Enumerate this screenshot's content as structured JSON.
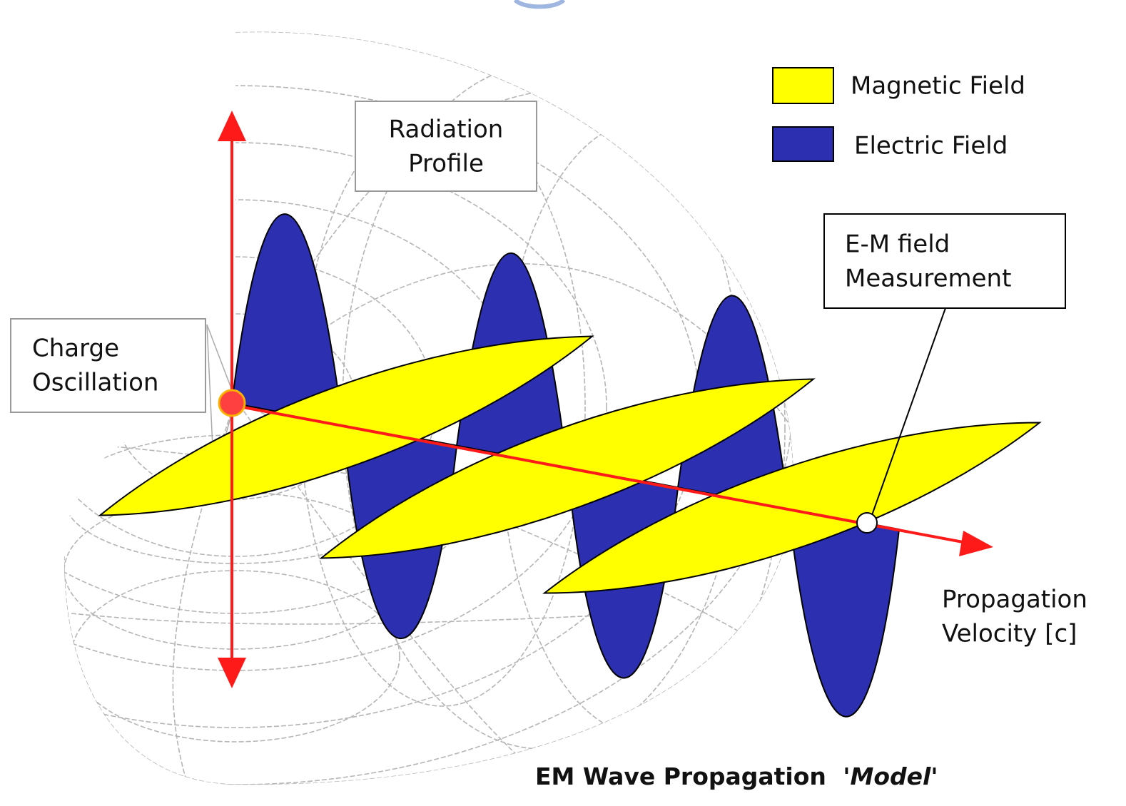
{
  "legend": {
    "items": [
      {
        "label": "Magnetic Field"
      },
      {
        "label": "Electric Field"
      }
    ]
  },
  "labels": {
    "radiation_profile": {
      "lines": [
        "Radiation",
        "Profile"
      ]
    },
    "charge_oscillation": {
      "lines": [
        "Charge",
        "Oscillation"
      ]
    },
    "measurement": {
      "lines": [
        "E-M field",
        "Measurement"
      ]
    },
    "propagation": {
      "lines": [
        "Propagation",
        "Velocity [c]"
      ]
    }
  },
  "caption": {
    "parts": [
      "EM Wave Propagation",
      "'Model'"
    ]
  }
}
